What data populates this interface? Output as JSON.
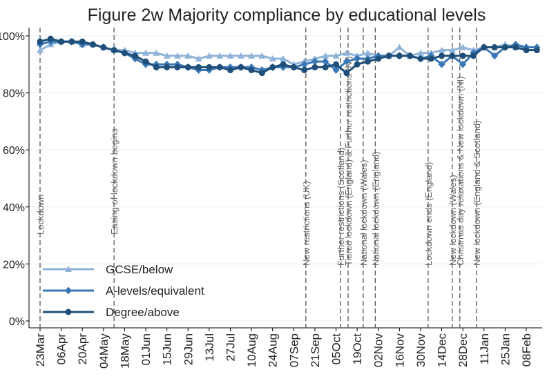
{
  "chart_data": {
    "type": "line",
    "title": "Figure 2w Majority compliance by educational levels",
    "x": [
      "23Mar",
      "30Mar",
      "06Apr",
      "13Apr",
      "20Apr",
      "27Apr",
      "04May",
      "11May",
      "18May",
      "25May",
      "01Jun",
      "08Jun",
      "15Jun",
      "22Jun",
      "29Jun",
      "06Jul",
      "13Jul",
      "20Jul",
      "27Jul",
      "03Aug",
      "10Aug",
      "17Aug",
      "24Aug",
      "31Aug",
      "07Sep",
      "14Sep",
      "21Sep",
      "28Sep",
      "05Oct",
      "12Oct",
      "19Oct",
      "26Oct",
      "02Nov",
      "09Nov",
      "16Nov",
      "23Nov",
      "30Nov",
      "07Dec",
      "14Dec",
      "21Dec",
      "28Dec",
      "04Jan",
      "11Jan",
      "18Jan",
      "25Jan",
      "01Feb",
      "08Feb",
      "15Feb"
    ],
    "series": [
      {
        "name": "GCSE/below",
        "color": "#8fb3d9",
        "marker": "triangle",
        "values": [
          95,
          97,
          98,
          98,
          97,
          97,
          96,
          95,
          95,
          94,
          94,
          94,
          93,
          93,
          93,
          92,
          93,
          93,
          93,
          93,
          93,
          93,
          92,
          92,
          90,
          91,
          92,
          93,
          93,
          94,
          93,
          94,
          93,
          93,
          96,
          93,
          94,
          94,
          95,
          95,
          96,
          95,
          96,
          96,
          97,
          96,
          96,
          96
        ]
      },
      {
        "name": "A-levels/equivalent",
        "color": "#3a78b5",
        "marker": "diamond",
        "values": [
          97,
          98,
          98,
          98,
          97,
          97,
          96,
          95,
          94,
          92,
          90,
          90,
          90,
          90,
          89,
          88,
          88,
          89,
          89,
          89,
          89,
          88,
          89,
          89,
          89,
          90,
          91,
          91,
          88,
          91,
          92,
          92,
          93,
          93,
          93,
          93,
          92,
          93,
          90,
          93,
          90,
          94,
          96,
          93,
          96,
          97,
          96,
          96
        ]
      },
      {
        "name": "Degree/above",
        "color": "#1f4e79",
        "marker": "circle",
        "values": [
          98,
          99,
          98,
          98,
          98,
          97,
          96,
          95,
          94,
          93,
          91,
          89,
          89,
          89,
          89,
          89,
          89,
          89,
          88,
          89,
          88,
          87,
          89,
          90,
          89,
          88,
          89,
          89,
          90,
          87,
          90,
          91,
          92,
          93,
          93,
          93,
          92,
          92,
          93,
          93,
          93,
          93,
          96,
          96,
          96,
          96,
          95,
          95
        ]
      }
    ],
    "xticks": [
      "23Mar",
      "06Apr",
      "20Apr",
      "04May",
      "18May",
      "01Jun",
      "15Jun",
      "29Jun",
      "13Jul",
      "27Jul",
      "10Aug",
      "24Aug",
      "07Sep",
      "21Sep",
      "05Oct",
      "19Oct",
      "02Nov",
      "16Nov",
      "30Nov",
      "14Dec",
      "28Dec",
      "11Jan",
      "25Jan",
      "08Feb"
    ],
    "ylim": [
      0,
      100
    ],
    "yticks": [
      {
        "value": 0,
        "label": "0%"
      },
      {
        "value": 20,
        "label": "20%"
      },
      {
        "value": 40,
        "label": "40%"
      },
      {
        "value": 60,
        "label": "60%"
      },
      {
        "value": 80,
        "label": "80%"
      },
      {
        "value": 100,
        "label": "100%"
      }
    ],
    "grid": true,
    "legend": "lower left",
    "annotations": [
      {
        "x": "23Mar",
        "text": "Lockdown"
      },
      {
        "x": "11May",
        "text": "Easing of lockdown begins"
      },
      {
        "x": "15Sep",
        "text": "New restrictions (UK)"
      },
      {
        "x": "08Oct",
        "text": "Further restrictions (Scotland)"
      },
      {
        "x": "13Oct",
        "text": "Tiered lockdown (England) & Further restrictions (NI)"
      },
      {
        "x": "23Oct",
        "text": "National lockdown (Wales)"
      },
      {
        "x": "31Oct",
        "text": "National lockdown (England)"
      },
      {
        "x": "05Dec",
        "text": "Lockdown ends (England)"
      },
      {
        "x": "21Dec",
        "text": "New lockdown (Wales)"
      },
      {
        "x": "26Dec",
        "text": "Christmas day relaxations & New lockdown (NI)"
      },
      {
        "x": "06Jan",
        "text": "New lockdown (England & Scotland)"
      }
    ]
  }
}
